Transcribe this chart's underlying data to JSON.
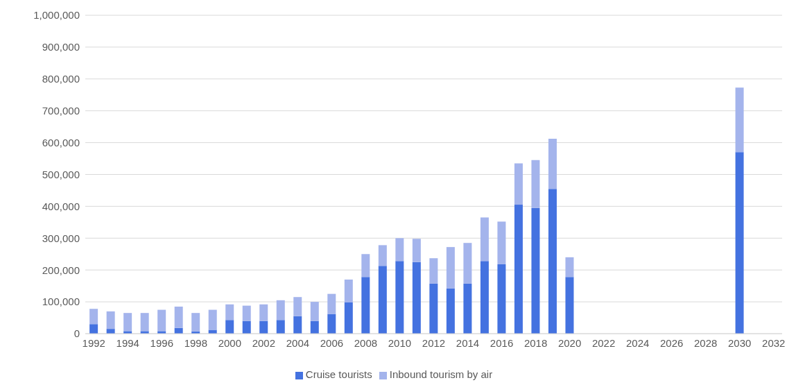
{
  "chart_data": {
    "type": "bar",
    "stacked": true,
    "categories": [
      "1992",
      null,
      "1994",
      null,
      "1996",
      null,
      "1998",
      null,
      "2000",
      null,
      "2002",
      null,
      "2004",
      null,
      "2006",
      null,
      "2008",
      null,
      "2010",
      null,
      "2012",
      null,
      "2014",
      null,
      "2016",
      null,
      "2018",
      null,
      "2020",
      null,
      "2022",
      null,
      "2024",
      null,
      "2026",
      null,
      "2028",
      null,
      "2030",
      null,
      "2032"
    ],
    "series": [
      {
        "name": "Cruise tourists",
        "color": "#4472e0",
        "values": [
          30000,
          15000,
          8000,
          8000,
          8000,
          18000,
          7000,
          12000,
          43000,
          40000,
          40000,
          43000,
          55000,
          40000,
          62000,
          98000,
          178000,
          213000,
          228000,
          225000,
          157000,
          142000,
          157000,
          228000,
          218000,
          405000,
          395000,
          455000,
          178000,
          null,
          null,
          null,
          null,
          null,
          null,
          null,
          null,
          null,
          570000,
          null,
          null
        ]
      },
      {
        "name": "Inbound tourism by air",
        "color": "#a4b4ec",
        "values": [
          48000,
          55000,
          57000,
          57000,
          67000,
          67000,
          58000,
          63000,
          49000,
          48000,
          52000,
          62000,
          60000,
          60000,
          63000,
          72000,
          72000,
          65000,
          72000,
          73000,
          80000,
          130000,
          128000,
          137000,
          134000,
          130000,
          150000,
          157000,
          62000,
          null,
          null,
          null,
          null,
          null,
          null,
          null,
          null,
          null,
          203000,
          null,
          null
        ]
      }
    ],
    "ylim": [
      0,
      1000000
    ],
    "yticks": [
      0,
      {
        "value": 100000,
        "label": "100,000"
      },
      {
        "value": 200000,
        "label": "200,000"
      },
      {
        "value": 300000,
        "label": "300,000"
      },
      {
        "value": 400000,
        "label": "400,000"
      },
      {
        "value": 500000,
        "label": "500,000"
      },
      {
        "value": 600000,
        "label": "600,000"
      },
      {
        "value": 700000,
        "label": "700,000"
      },
      {
        "value": 800000,
        "label": "800,000"
      },
      {
        "value": 900000,
        "label": "900,000"
      },
      {
        "value": 1000000,
        "label": "1,000,000"
      }
    ],
    "grid": "y",
    "legend": "bottom"
  }
}
